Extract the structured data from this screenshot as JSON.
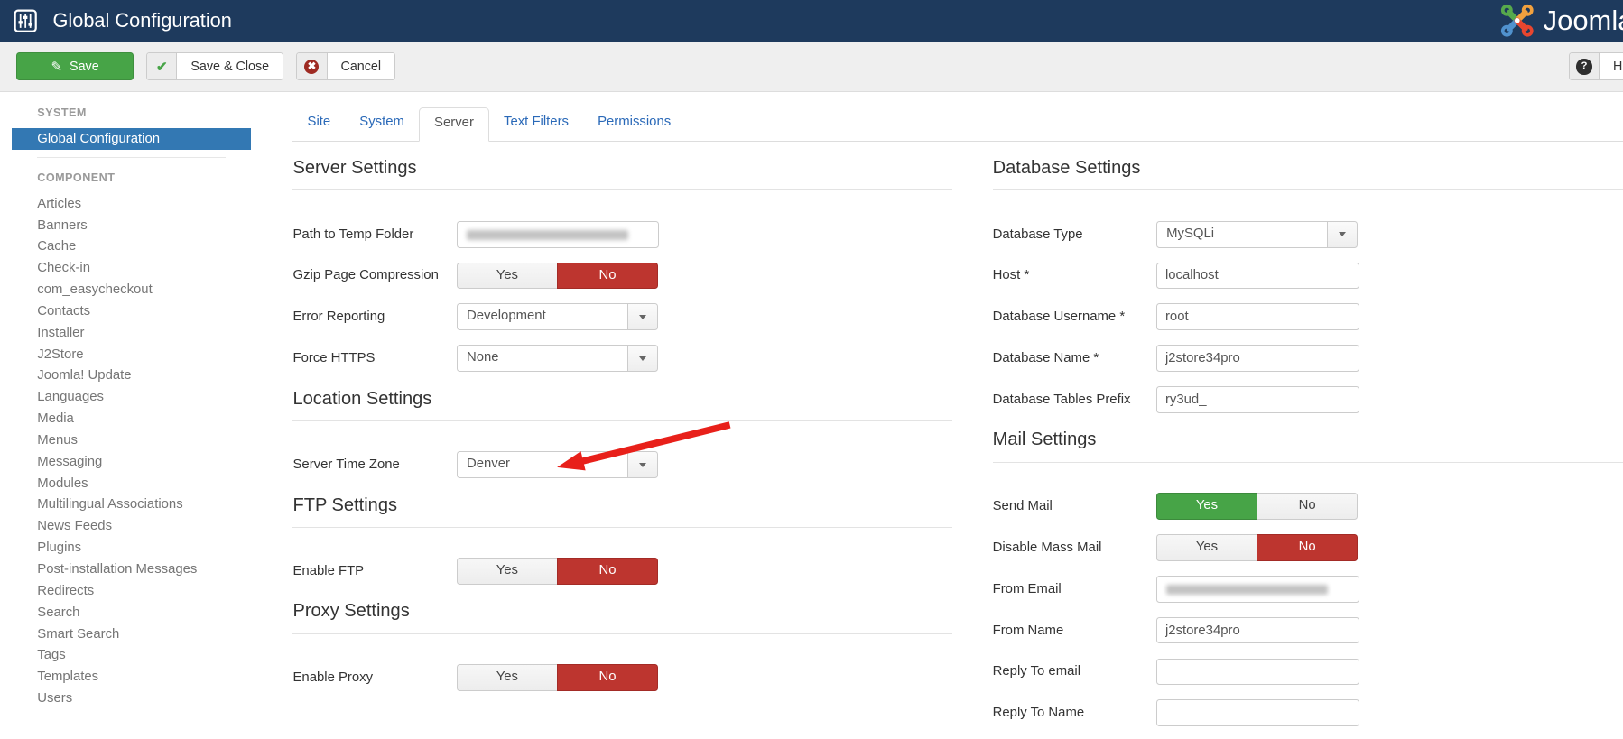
{
  "header": {
    "title": "Global Configuration",
    "brand": "Joomla"
  },
  "toolbar": {
    "save": "Save",
    "save_close": "Save & Close",
    "cancel": "Cancel",
    "help": "Help"
  },
  "sidebar": {
    "system_heading": "SYSTEM",
    "system_active_item": "Global Configuration",
    "component_heading": "COMPONENT",
    "component_items": [
      "Articles",
      "Banners",
      "Cache",
      "Check-in",
      "com_easycheckout",
      "Contacts",
      "Installer",
      "J2Store",
      "Joomla! Update",
      "Languages",
      "Media",
      "Menus",
      "Messaging",
      "Modules",
      "Multilingual Associations",
      "News Feeds",
      "Plugins",
      "Post-installation Messages",
      "Redirects",
      "Search",
      "Smart Search",
      "Tags",
      "Templates",
      "Users"
    ]
  },
  "tabs": [
    {
      "label": "Site",
      "active": false
    },
    {
      "label": "System",
      "active": false
    },
    {
      "label": "Server",
      "active": true
    },
    {
      "label": "Text Filters",
      "active": false
    },
    {
      "label": "Permissions",
      "active": false
    }
  ],
  "toggle_labels": {
    "yes": "Yes",
    "no": "No"
  },
  "colors": {
    "toggle_yes": "#47a447",
    "toggle_no": "#bd352f",
    "accent_blue": "#3378b3",
    "navbar": "#1e3a5d",
    "arrow": "#e8201a"
  },
  "main": {
    "left_sections": [
      {
        "title": "Server Settings",
        "fields": [
          {
            "label": "Path to Temp Folder",
            "type": "redacted"
          },
          {
            "label": "Gzip Page Compression",
            "type": "toggle",
            "value": "No"
          },
          {
            "label": "Error Reporting",
            "type": "select",
            "value": "Development"
          },
          {
            "label": "Force HTTPS",
            "type": "select",
            "value": "None"
          }
        ]
      },
      {
        "title": "Location Settings",
        "fields": [
          {
            "label": "Server Time Zone",
            "type": "select",
            "value": "Denver",
            "annotated": true
          }
        ]
      },
      {
        "title": "FTP Settings",
        "fields": [
          {
            "label": "Enable FTP",
            "type": "toggle",
            "value": "No"
          }
        ]
      },
      {
        "title": "Proxy Settings",
        "fields": [
          {
            "label": "Enable Proxy",
            "type": "toggle",
            "value": "No"
          }
        ]
      }
    ],
    "right_sections": [
      {
        "title": "Database Settings",
        "fields": [
          {
            "label": "Database Type",
            "type": "select",
            "value": "MySQLi"
          },
          {
            "label": "Host *",
            "type": "text",
            "value": "localhost"
          },
          {
            "label": "Database Username *",
            "type": "text",
            "value": "root"
          },
          {
            "label": "Database Name *",
            "type": "text",
            "value": "j2store34pro"
          },
          {
            "label": "Database Tables Prefix",
            "type": "text",
            "value": "ry3ud_"
          }
        ]
      },
      {
        "title": "Mail Settings",
        "fields": [
          {
            "label": "Send Mail",
            "type": "toggle",
            "value": "Yes"
          },
          {
            "label": "Disable Mass Mail",
            "type": "toggle",
            "value": "No"
          },
          {
            "label": "From Email",
            "type": "redacted"
          },
          {
            "label": "From Name",
            "type": "text",
            "value": "j2store34pro"
          },
          {
            "label": "Reply To email",
            "type": "text",
            "value": ""
          },
          {
            "label": "Reply To Name",
            "type": "text",
            "value": ""
          }
        ]
      }
    ]
  },
  "annotation": {
    "type": "red-arrow",
    "points_at": "Server Time Zone"
  }
}
